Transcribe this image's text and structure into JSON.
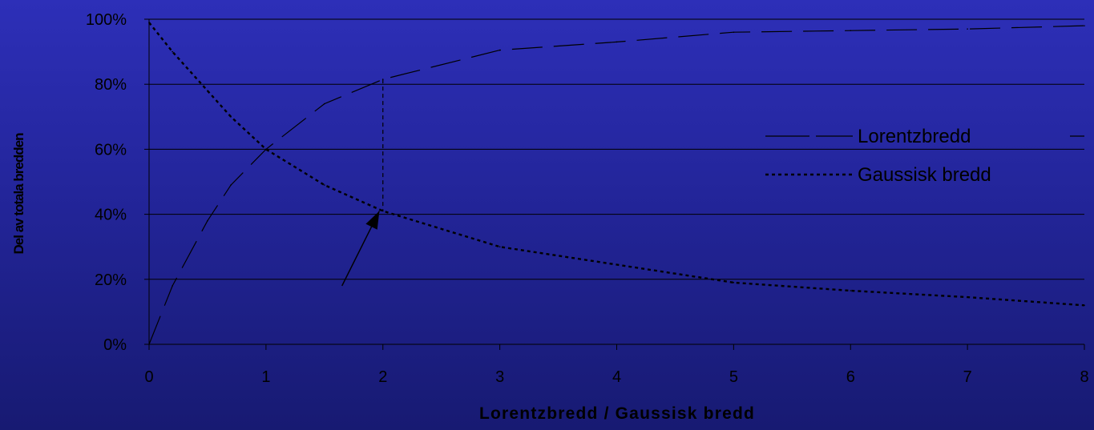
{
  "chart_data": {
    "type": "line",
    "title": "",
    "xlabel": "Lorentzbredd / Gaussisk bredd",
    "ylabel": "Del av totala bredden",
    "xlim": [
      0,
      8
    ],
    "ylim": [
      0,
      100
    ],
    "x_ticks": [
      "0",
      "1",
      "2",
      "3",
      "4",
      "5",
      "6",
      "7",
      "8"
    ],
    "y_ticks": [
      "0%",
      "20%",
      "40%",
      "60%",
      "80%",
      "100%"
    ],
    "grid": "horizontal",
    "legend_position": "right",
    "series": [
      {
        "name": "Lorentzbredd",
        "style": "long-dash",
        "x": [
          0,
          0.2,
          0.5,
          0.7,
          1,
          1.5,
          2,
          3,
          4,
          5,
          6,
          7,
          8
        ],
        "y": [
          0,
          18,
          38,
          49,
          60,
          74,
          81.5,
          90.5,
          93,
          96,
          96.5,
          97,
          98
        ]
      },
      {
        "name": "Gaussisk bredd",
        "style": "short-dash",
        "x": [
          0,
          0.2,
          0.5,
          0.7,
          1,
          1.5,
          2,
          3,
          4,
          5,
          6,
          7,
          8
        ],
        "y": [
          99,
          90,
          78,
          70,
          60,
          49,
          41,
          30,
          24.5,
          19,
          16.5,
          14.5,
          12
        ]
      }
    ],
    "annotations": [
      {
        "type": "vertical-dashed-line",
        "x": 2,
        "y_from": 81.5,
        "y_to": 41
      },
      {
        "type": "arrow",
        "from": [
          1.65,
          18
        ],
        "to": [
          1.97,
          41
        ]
      }
    ]
  },
  "colors": {
    "background_top": "#2d2fb8",
    "background_bottom": "#171a72",
    "gridline": "#000000",
    "series": "#000000",
    "text": "#000000"
  }
}
